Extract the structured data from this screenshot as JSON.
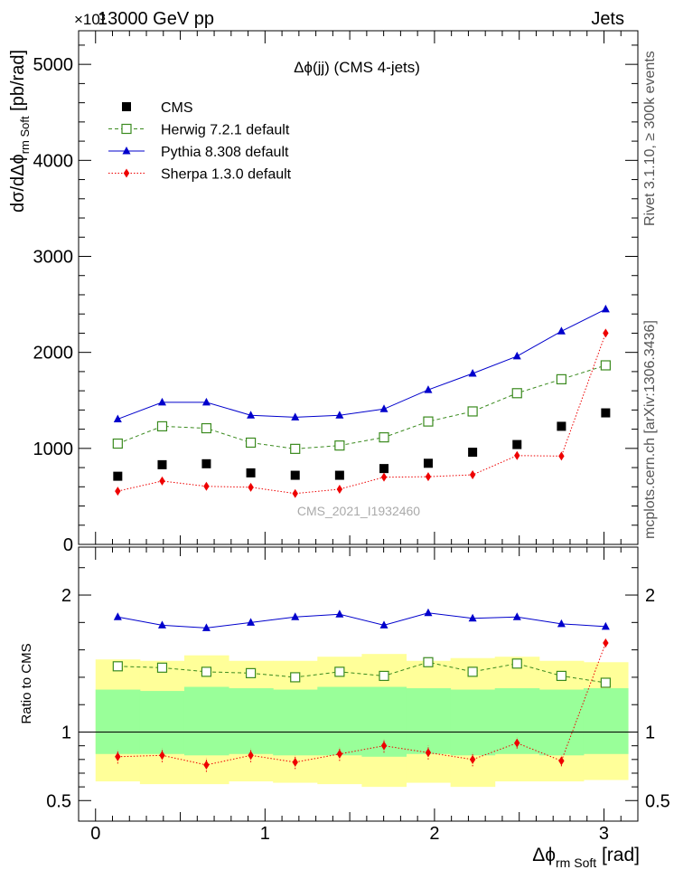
{
  "header": {
    "left": "13000 GeV pp",
    "right": "Jets",
    "exponent": "×10³"
  },
  "side_labels": {
    "rivet": "Rivet 3.1.10, ≥ 300k events",
    "mcplots": "mcplots.cern.ch [arXiv:1306.3436]"
  },
  "watermark": "CMS_2021_I1932460",
  "chart_data": {
    "type": "line",
    "title": "Δϕ(jj) (CMS 4-jets)",
    "xlabel": "Δϕ rm Soft [rad]",
    "ylabel": "dσ/dΔϕ rm Soft [pb/rad]",
    "ratio_ylabel": "Ratio to CMS",
    "xlim": [
      -0.1,
      3.2
    ],
    "ylim": [
      0,
      5350
    ],
    "ratio_ylim": [
      0.35,
      2.35
    ],
    "x_ticks": [
      "0",
      "1",
      "2",
      "3"
    ],
    "y_ticks": [
      "0",
      "1000",
      "2000",
      "3000",
      "4000",
      "5000"
    ],
    "ratio_ticks": [
      "0.5",
      "1",
      "2"
    ],
    "legend_position": "top-left",
    "bin_edges": [
      0,
      0.2618,
      0.5236,
      0.7854,
      1.0472,
      1.309,
      1.5708,
      1.8326,
      2.0944,
      2.3562,
      2.618,
      2.8798,
      3.1416
    ],
    "x": [
      0.131,
      0.393,
      0.654,
      0.916,
      1.178,
      1.44,
      1.702,
      1.963,
      2.225,
      2.487,
      2.749,
      3.01
    ],
    "series": [
      {
        "name": "CMS",
        "color": "#000000",
        "marker": "square",
        "values": [
          710,
          830,
          840,
          745,
          720,
          720,
          790,
          845,
          960,
          1040,
          1230,
          1370
        ]
      },
      {
        "name": "Herwig 7.2.1 default",
        "color": "#3a8a1e",
        "marker": "open-square",
        "line": "dashed",
        "values": [
          1050,
          1230,
          1210,
          1060,
          995,
          1030,
          1115,
          1280,
          1385,
          1575,
          1720,
          1865
        ]
      },
      {
        "name": "Pythia 8.308 default",
        "color": "#0000cc",
        "marker": "triangle",
        "line": "solid",
        "values": [
          1305,
          1480,
          1480,
          1345,
          1325,
          1345,
          1410,
          1610,
          1780,
          1960,
          2220,
          2450
        ]
      },
      {
        "name": "Sherpa 1.3.0 default",
        "color": "#ee0000",
        "marker": "diamond",
        "line": "dotted",
        "values": [
          555,
          660,
          605,
          595,
          530,
          575,
          700,
          705,
          725,
          925,
          920,
          2200
        ]
      }
    ],
    "ratio_series": [
      {
        "name": "Herwig 7.2.1 default",
        "values": [
          1.48,
          1.47,
          1.44,
          1.43,
          1.4,
          1.44,
          1.41,
          1.51,
          1.44,
          1.5,
          1.41,
          1.36
        ]
      },
      {
        "name": "Pythia 8.308 default",
        "values": [
          1.84,
          1.78,
          1.76,
          1.8,
          1.84,
          1.86,
          1.78,
          1.87,
          1.83,
          1.84,
          1.79,
          1.77
        ]
      },
      {
        "name": "Sherpa 1.3.0 default",
        "values": [
          0.82,
          0.83,
          0.76,
          0.83,
          0.78,
          0.84,
          0.9,
          0.85,
          0.8,
          0.92,
          0.79,
          1.65
        ]
      }
    ],
    "sherpa_ratio_err": [
      0.05,
      0.05,
      0.05,
      0.05,
      0.05,
      0.05,
      0.05,
      0.05,
      0.05,
      0.04,
      0.04,
      0.03
    ],
    "band_inner": [
      [
        0.84,
        1.31
      ],
      [
        0.84,
        1.3
      ],
      [
        0.83,
        1.33
      ],
      [
        0.84,
        1.32
      ],
      [
        0.83,
        1.31
      ],
      [
        0.83,
        1.33
      ],
      [
        0.82,
        1.33
      ],
      [
        0.84,
        1.32
      ],
      [
        0.83,
        1.31
      ],
      [
        0.84,
        1.32
      ],
      [
        0.83,
        1.31
      ],
      [
        0.84,
        1.32
      ]
    ],
    "band_outer": [
      [
        0.64,
        1.53
      ],
      [
        0.62,
        1.52
      ],
      [
        0.62,
        1.56
      ],
      [
        0.64,
        1.52
      ],
      [
        0.63,
        1.52
      ],
      [
        0.62,
        1.55
      ],
      [
        0.6,
        1.57
      ],
      [
        0.63,
        1.52
      ],
      [
        0.6,
        1.54
      ],
      [
        0.64,
        1.55
      ],
      [
        0.64,
        1.52
      ],
      [
        0.65,
        1.51
      ]
    ],
    "band_colors": {
      "inner": "#99ff99",
      "outer": "#ffff99"
    }
  }
}
